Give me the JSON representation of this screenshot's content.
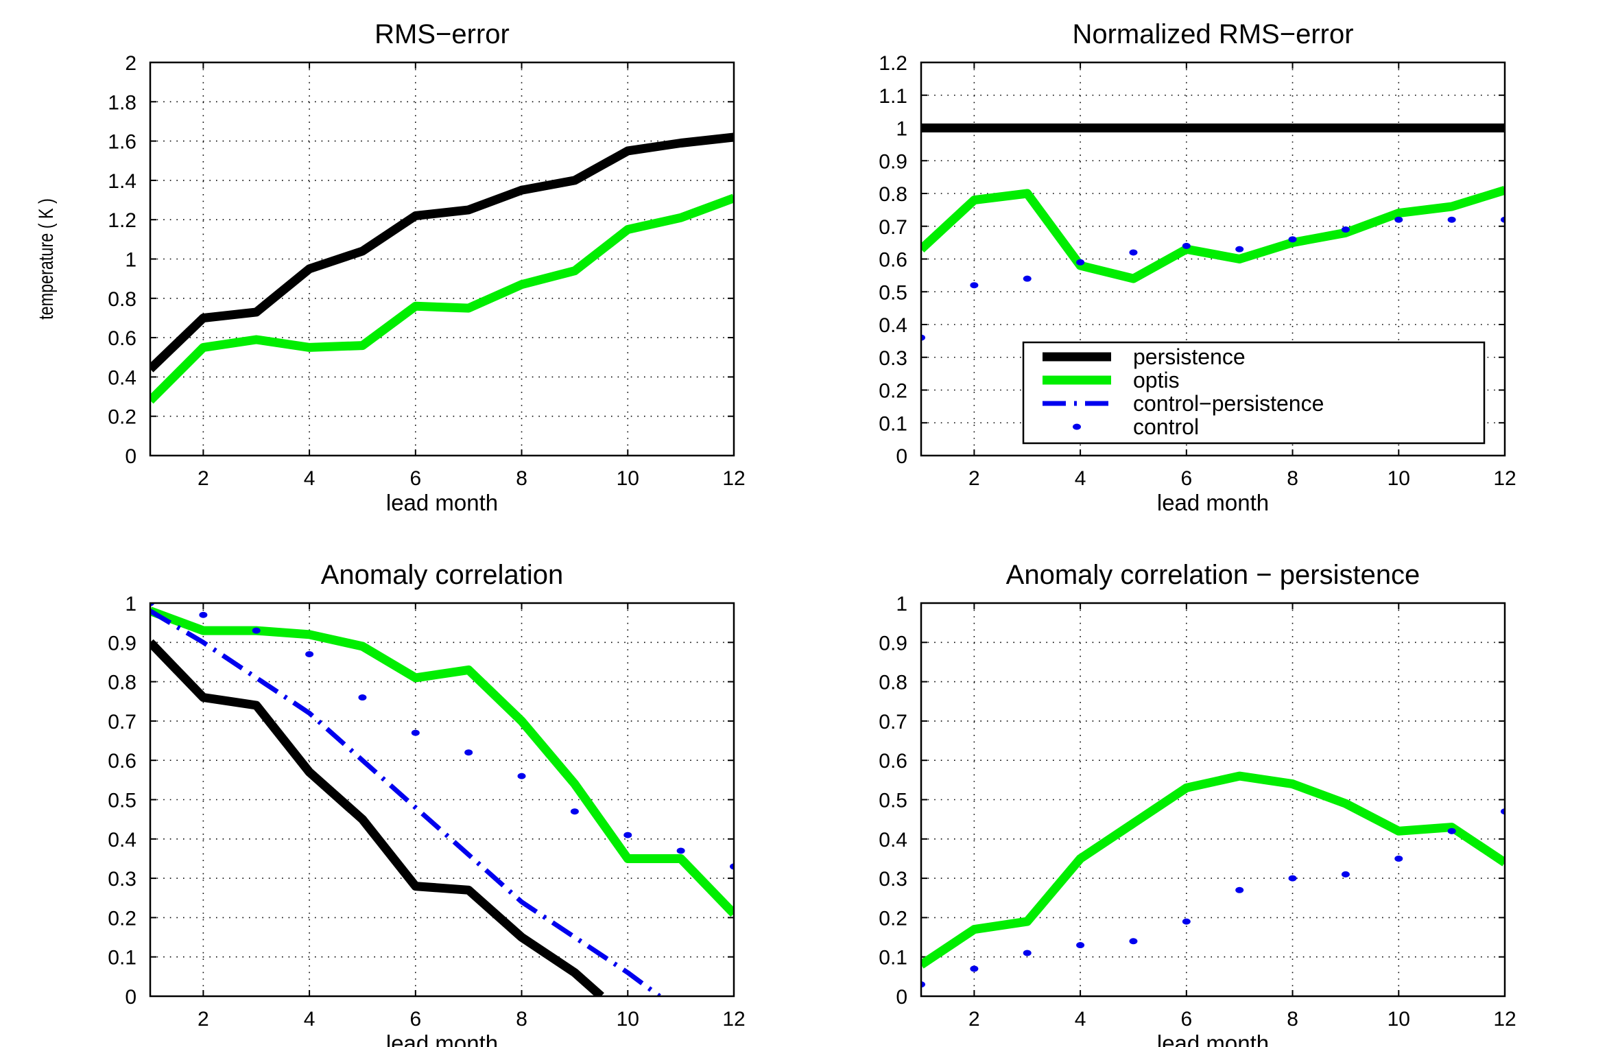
{
  "chart_data": [
    {
      "type": "line",
      "title": "RMS−error",
      "xlabel": "lead month",
      "ylabel": "temperature ( K )",
      "xlim": [
        1,
        12
      ],
      "ylim": [
        0,
        2
      ],
      "grid": true,
      "xticks": [
        2,
        4,
        6,
        8,
        10,
        12
      ],
      "yticks": [
        0,
        0.2,
        0.4,
        0.6,
        0.8,
        1,
        1.2,
        1.4,
        1.6,
        1.8,
        2
      ],
      "ytick_labels": [
        "0",
        "0.2",
        "0.4",
        "0.6",
        "0.8",
        "1",
        "1.2",
        "1.4",
        "1.6",
        "1.8",
        "2"
      ],
      "series": [
        {
          "style": "persistence",
          "color": "#000000",
          "x": [
            1,
            2,
            3,
            4,
            5,
            6,
            7,
            8,
            9,
            10,
            11,
            12
          ],
          "y": [
            0.44,
            0.7,
            0.73,
            0.95,
            1.04,
            1.22,
            1.25,
            1.35,
            1.4,
            1.55,
            1.59,
            1.62
          ]
        },
        {
          "style": "optis",
          "color": "#00ee00",
          "x": [
            1,
            2,
            3,
            4,
            5,
            6,
            7,
            8,
            9,
            10,
            11,
            12
          ],
          "y": [
            0.28,
            0.55,
            0.59,
            0.55,
            0.56,
            0.76,
            0.75,
            0.87,
            0.94,
            1.15,
            1.21,
            1.31
          ]
        }
      ]
    },
    {
      "type": "line",
      "title": "Normalized RMS−error",
      "xlabel": "lead month",
      "ylabel": "",
      "xlim": [
        1,
        12
      ],
      "ylim": [
        0,
        1.2
      ],
      "grid": true,
      "xticks": [
        2,
        4,
        6,
        8,
        10,
        12
      ],
      "yticks": [
        0,
        0.1,
        0.2,
        0.3,
        0.4,
        0.5,
        0.6,
        0.7,
        0.8,
        0.9,
        1,
        1.1,
        1.2
      ],
      "ytick_labels": [
        "0",
        "0.1",
        "0.2",
        "0.3",
        "0.4",
        "0.5",
        "0.6",
        "0.7",
        "0.8",
        "0.9",
        "1",
        "1.1",
        "1.2"
      ],
      "legend": {
        "position": "lower-right",
        "entries": [
          {
            "label": "persistence",
            "style": "persistence"
          },
          {
            "label": "optis",
            "style": "optis"
          },
          {
            "label": "control−persistence",
            "style": "control-persistence"
          },
          {
            "label": "control",
            "style": "control"
          }
        ]
      },
      "series": [
        {
          "style": "persistence",
          "color": "#000000",
          "x": [
            1,
            12
          ],
          "y": [
            1.0,
            1.0
          ]
        },
        {
          "style": "optis",
          "color": "#00ee00",
          "x": [
            1,
            2,
            3,
            4,
            5,
            6,
            7,
            8,
            9,
            10,
            11,
            12
          ],
          "y": [
            0.63,
            0.78,
            0.8,
            0.58,
            0.54,
            0.63,
            0.6,
            0.65,
            0.68,
            0.74,
            0.76,
            0.81
          ]
        },
        {
          "style": "control",
          "color": "#0000ee",
          "x": [
            1,
            2,
            3,
            4,
            5,
            6,
            7,
            8,
            9,
            10,
            11,
            12
          ],
          "y": [
            0.36,
            0.52,
            0.54,
            0.59,
            0.62,
            0.64,
            0.63,
            0.66,
            0.69,
            0.72,
            0.72,
            0.72
          ]
        }
      ]
    },
    {
      "type": "line",
      "title": "Anomaly correlation",
      "xlabel": "lead month",
      "ylabel": "",
      "xlim": [
        1,
        12
      ],
      "ylim": [
        0,
        1
      ],
      "grid": true,
      "xticks": [
        2,
        4,
        6,
        8,
        10,
        12
      ],
      "yticks": [
        0,
        0.1,
        0.2,
        0.3,
        0.4,
        0.5,
        0.6,
        0.7,
        0.8,
        0.9,
        1
      ],
      "ytick_labels": [
        "0",
        "0.1",
        "0.2",
        "0.3",
        "0.4",
        "0.5",
        "0.6",
        "0.7",
        "0.8",
        "0.9",
        "1"
      ],
      "series": [
        {
          "style": "persistence",
          "color": "#000000",
          "x": [
            1,
            2,
            3,
            4,
            5,
            6,
            7,
            8,
            9,
            9.5
          ],
          "y": [
            0.9,
            0.76,
            0.74,
            0.57,
            0.45,
            0.28,
            0.27,
            0.15,
            0.06,
            0.0
          ]
        },
        {
          "style": "optis",
          "color": "#00ee00",
          "x": [
            1,
            2,
            3,
            4,
            5,
            6,
            7,
            8,
            9,
            10,
            11,
            12
          ],
          "y": [
            0.98,
            0.93,
            0.93,
            0.92,
            0.89,
            0.81,
            0.83,
            0.7,
            0.54,
            0.35,
            0.35,
            0.21
          ]
        },
        {
          "style": "control-persistence",
          "color": "#0000ee",
          "x": [
            1,
            2,
            3,
            4,
            5,
            6,
            7,
            8,
            9,
            10,
            10.6
          ],
          "y": [
            0.98,
            0.9,
            0.81,
            0.72,
            0.6,
            0.48,
            0.36,
            0.24,
            0.15,
            0.06,
            0.0
          ]
        },
        {
          "style": "control",
          "color": "#0000ee",
          "x": [
            1,
            2,
            3,
            4,
            5,
            6,
            7,
            8,
            9,
            10,
            11,
            12
          ],
          "y": [
            1.0,
            0.97,
            0.93,
            0.87,
            0.76,
            0.67,
            0.62,
            0.56,
            0.47,
            0.41,
            0.37,
            0.33
          ]
        }
      ]
    },
    {
      "type": "line",
      "title": "Anomaly correlation − persistence",
      "xlabel": "lead month",
      "ylabel": "",
      "xlim": [
        1,
        12
      ],
      "ylim": [
        0,
        1
      ],
      "grid": true,
      "xticks": [
        2,
        4,
        6,
        8,
        10,
        12
      ],
      "yticks": [
        0,
        0.1,
        0.2,
        0.3,
        0.4,
        0.5,
        0.6,
        0.7,
        0.8,
        0.9,
        1
      ],
      "ytick_labels": [
        "0",
        "0.1",
        "0.2",
        "0.3",
        "0.4",
        "0.5",
        "0.6",
        "0.7",
        "0.8",
        "0.9",
        "1"
      ],
      "series": [
        {
          "style": "optis",
          "color": "#00ee00",
          "x": [
            1,
            2,
            3,
            4,
            5,
            6,
            7,
            8,
            9,
            10,
            11,
            12
          ],
          "y": [
            0.08,
            0.17,
            0.19,
            0.35,
            0.44,
            0.53,
            0.56,
            0.54,
            0.49,
            0.42,
            0.43,
            0.34
          ]
        },
        {
          "style": "control",
          "color": "#0000ee",
          "x": [
            1,
            2,
            3,
            4,
            5,
            6,
            7,
            8,
            9,
            10,
            11,
            12
          ],
          "y": [
            0.03,
            0.07,
            0.11,
            0.13,
            0.14,
            0.19,
            0.27,
            0.3,
            0.31,
            0.35,
            0.42,
            0.47
          ]
        }
      ]
    }
  ]
}
